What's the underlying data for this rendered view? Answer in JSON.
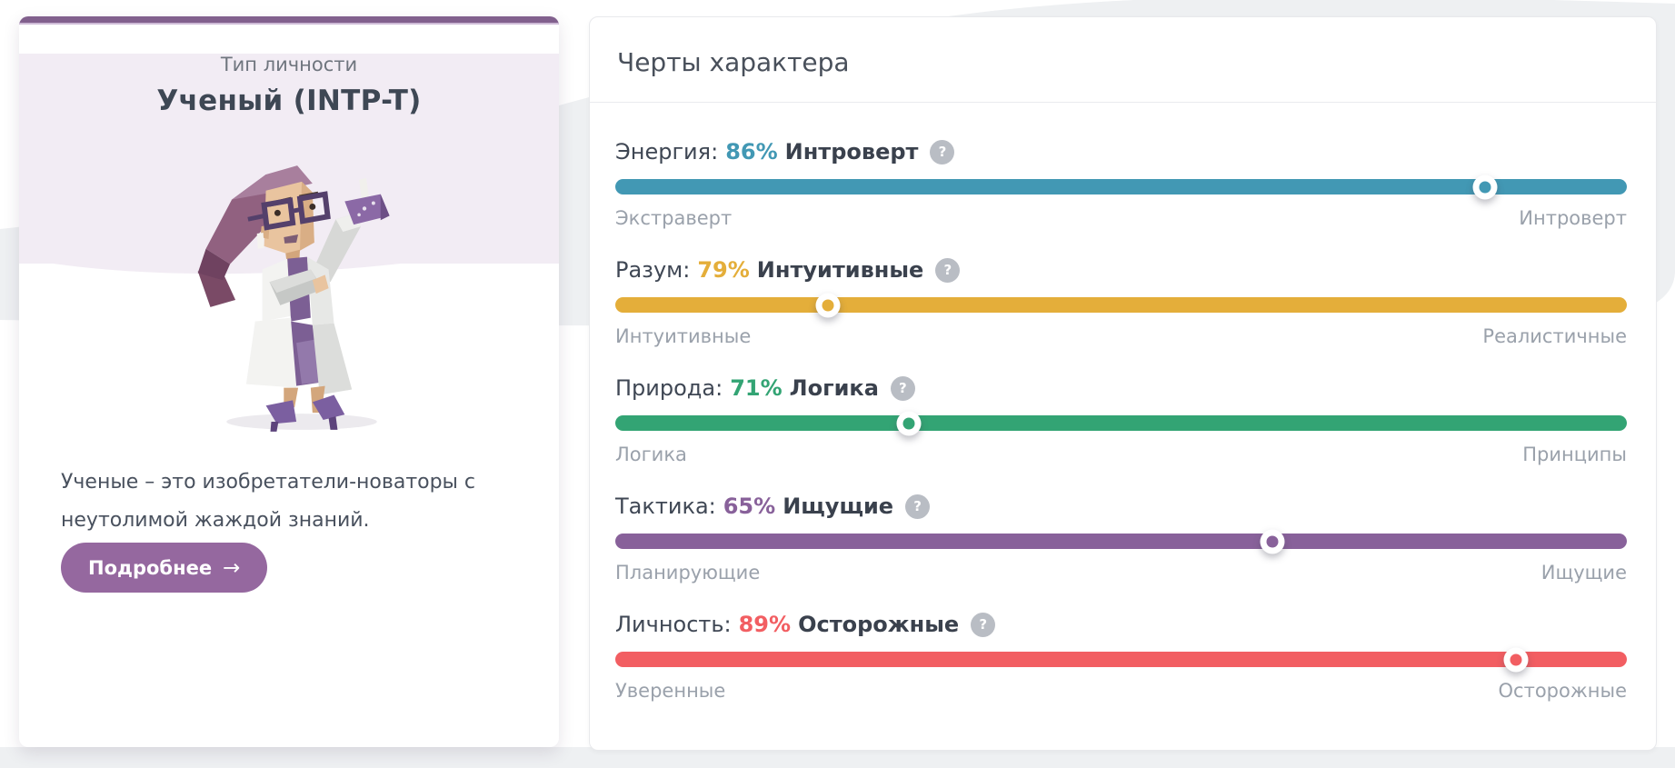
{
  "page": {
    "background_color": "#ffffff",
    "wave_color": "#eef0f2"
  },
  "profile_card": {
    "top_bar_color": "#81608d",
    "header_bg": "#f2ecf4",
    "kicker": "Тип личности",
    "title": "Ученый (INTP-T)",
    "avatar": "scientist-character-illustration",
    "description": "Ученые – это изобретатели-новаторы с неутолимой жаждой знаний.",
    "details_button": {
      "label": "Подробнее",
      "arrow": "→",
      "color": "#95689f"
    }
  },
  "traits_card": {
    "title": "Черты характера",
    "help_icon": "?",
    "rows": [
      {
        "name": "Энергия:",
        "percent": "86%",
        "winner": "Интроверт",
        "left_label": "Экстраверт",
        "right_label": "Интроверт",
        "color": "#4298b4",
        "handle_pct": 86
      },
      {
        "name": "Разум:",
        "percent": "79%",
        "winner": "Интуитивные",
        "left_label": "Интуитивные",
        "right_label": "Реалистичные",
        "color": "#e4ae3a",
        "handle_pct": 21
      },
      {
        "name": "Природа:",
        "percent": "71%",
        "winner": "Логика",
        "left_label": "Логика",
        "right_label": "Принципы",
        "color": "#33a474",
        "handle_pct": 29
      },
      {
        "name": "Тактика:",
        "percent": "65%",
        "winner": "Ищущие",
        "left_label": "Планирующие",
        "right_label": "Ищущие",
        "color": "#88619a",
        "handle_pct": 65
      },
      {
        "name": "Личность:",
        "percent": "89%",
        "winner": "Осторожные",
        "left_label": "Уверенные",
        "right_label": "Осторожные",
        "color": "#f25e62",
        "handle_pct": 89
      }
    ]
  }
}
